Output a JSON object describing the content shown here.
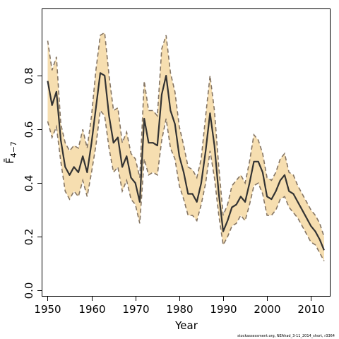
{
  "chart_data": {
    "type": "line",
    "title": "",
    "xlabel": "Year",
    "ylabel": "F̄",
    "ylabel_subscript": "4−7",
    "xlim": [
      1948.8,
      2014.3
    ],
    "ylim": [
      -0.02,
      1.05
    ],
    "x_ticks": [
      1950,
      1960,
      1970,
      1980,
      1990,
      2000,
      2010
    ],
    "x_tick_labels": [
      "1950",
      "1960",
      "1970",
      "1980",
      "1990",
      "2000",
      "2010"
    ],
    "y_ticks": [
      0.0,
      0.2,
      0.4,
      0.6,
      0.8
    ],
    "y_tick_labels": [
      "0.0",
      "0.2",
      "0.4",
      "0.6",
      "0.8"
    ],
    "grid": false,
    "colors": {
      "band": "#f6deb0",
      "bounds": "#857563",
      "line": "#333333"
    },
    "x": [
      1950,
      1951,
      1952,
      1953,
      1954,
      1955,
      1956,
      1957,
      1958,
      1959,
      1960,
      1961,
      1962,
      1963,
      1964,
      1965,
      1966,
      1967,
      1968,
      1969,
      1970,
      1971,
      1972,
      1973,
      1974,
      1975,
      1976,
      1977,
      1978,
      1979,
      1980,
      1981,
      1982,
      1983,
      1984,
      1985,
      1986,
      1987,
      1988,
      1989,
      1990,
      1991,
      1992,
      1993,
      1994,
      1995,
      1996,
      1997,
      1998,
      1999,
      2000,
      2001,
      2002,
      2003,
      2004,
      2005,
      2006,
      2007,
      2008,
      2009,
      2010,
      2011,
      2012,
      2013
    ],
    "series": [
      {
        "role": "estimate",
        "values": [
          0.78,
          0.69,
          0.74,
          0.56,
          0.46,
          0.43,
          0.46,
          0.44,
          0.5,
          0.44,
          0.55,
          0.68,
          0.81,
          0.8,
          0.65,
          0.55,
          0.57,
          0.46,
          0.5,
          0.42,
          0.4,
          0.33,
          0.64,
          0.55,
          0.55,
          0.54,
          0.73,
          0.8,
          0.67,
          0.62,
          0.5,
          0.44,
          0.36,
          0.36,
          0.33,
          0.4,
          0.52,
          0.66,
          0.54,
          0.36,
          0.22,
          0.26,
          0.31,
          0.32,
          0.35,
          0.33,
          0.4,
          0.48,
          0.48,
          0.44,
          0.35,
          0.34,
          0.37,
          0.41,
          0.43,
          0.37,
          0.36,
          0.33,
          0.3,
          0.27,
          0.24,
          0.22,
          0.19,
          0.15
        ]
      },
      {
        "role": "upper",
        "values": [
          0.93,
          0.82,
          0.87,
          0.62,
          0.55,
          0.52,
          0.54,
          0.53,
          0.6,
          0.53,
          0.65,
          0.82,
          0.95,
          0.96,
          0.8,
          0.67,
          0.68,
          0.55,
          0.59,
          0.51,
          0.49,
          0.42,
          0.78,
          0.67,
          0.67,
          0.65,
          0.9,
          0.95,
          0.81,
          0.74,
          0.61,
          0.54,
          0.46,
          0.45,
          0.42,
          0.49,
          0.65,
          0.8,
          0.67,
          0.46,
          0.28,
          0.32,
          0.39,
          0.41,
          0.43,
          0.4,
          0.48,
          0.58,
          0.56,
          0.51,
          0.42,
          0.41,
          0.44,
          0.49,
          0.51,
          0.44,
          0.43,
          0.39,
          0.36,
          0.33,
          0.3,
          0.28,
          0.25,
          0.2
        ]
      },
      {
        "role": "lower",
        "values": [
          0.63,
          0.57,
          0.61,
          0.48,
          0.37,
          0.34,
          0.37,
          0.35,
          0.41,
          0.35,
          0.44,
          0.54,
          0.67,
          0.65,
          0.53,
          0.44,
          0.46,
          0.37,
          0.41,
          0.34,
          0.32,
          0.25,
          0.49,
          0.43,
          0.44,
          0.43,
          0.56,
          0.64,
          0.53,
          0.49,
          0.39,
          0.34,
          0.28,
          0.28,
          0.26,
          0.32,
          0.4,
          0.52,
          0.42,
          0.28,
          0.17,
          0.2,
          0.24,
          0.25,
          0.28,
          0.26,
          0.32,
          0.39,
          0.4,
          0.36,
          0.28,
          0.28,
          0.3,
          0.34,
          0.35,
          0.31,
          0.29,
          0.27,
          0.24,
          0.21,
          0.18,
          0.17,
          0.14,
          0.11
        ]
      }
    ]
  },
  "credit": "stockassessment.org, NEAhad_3-11_2014_short, r3364"
}
